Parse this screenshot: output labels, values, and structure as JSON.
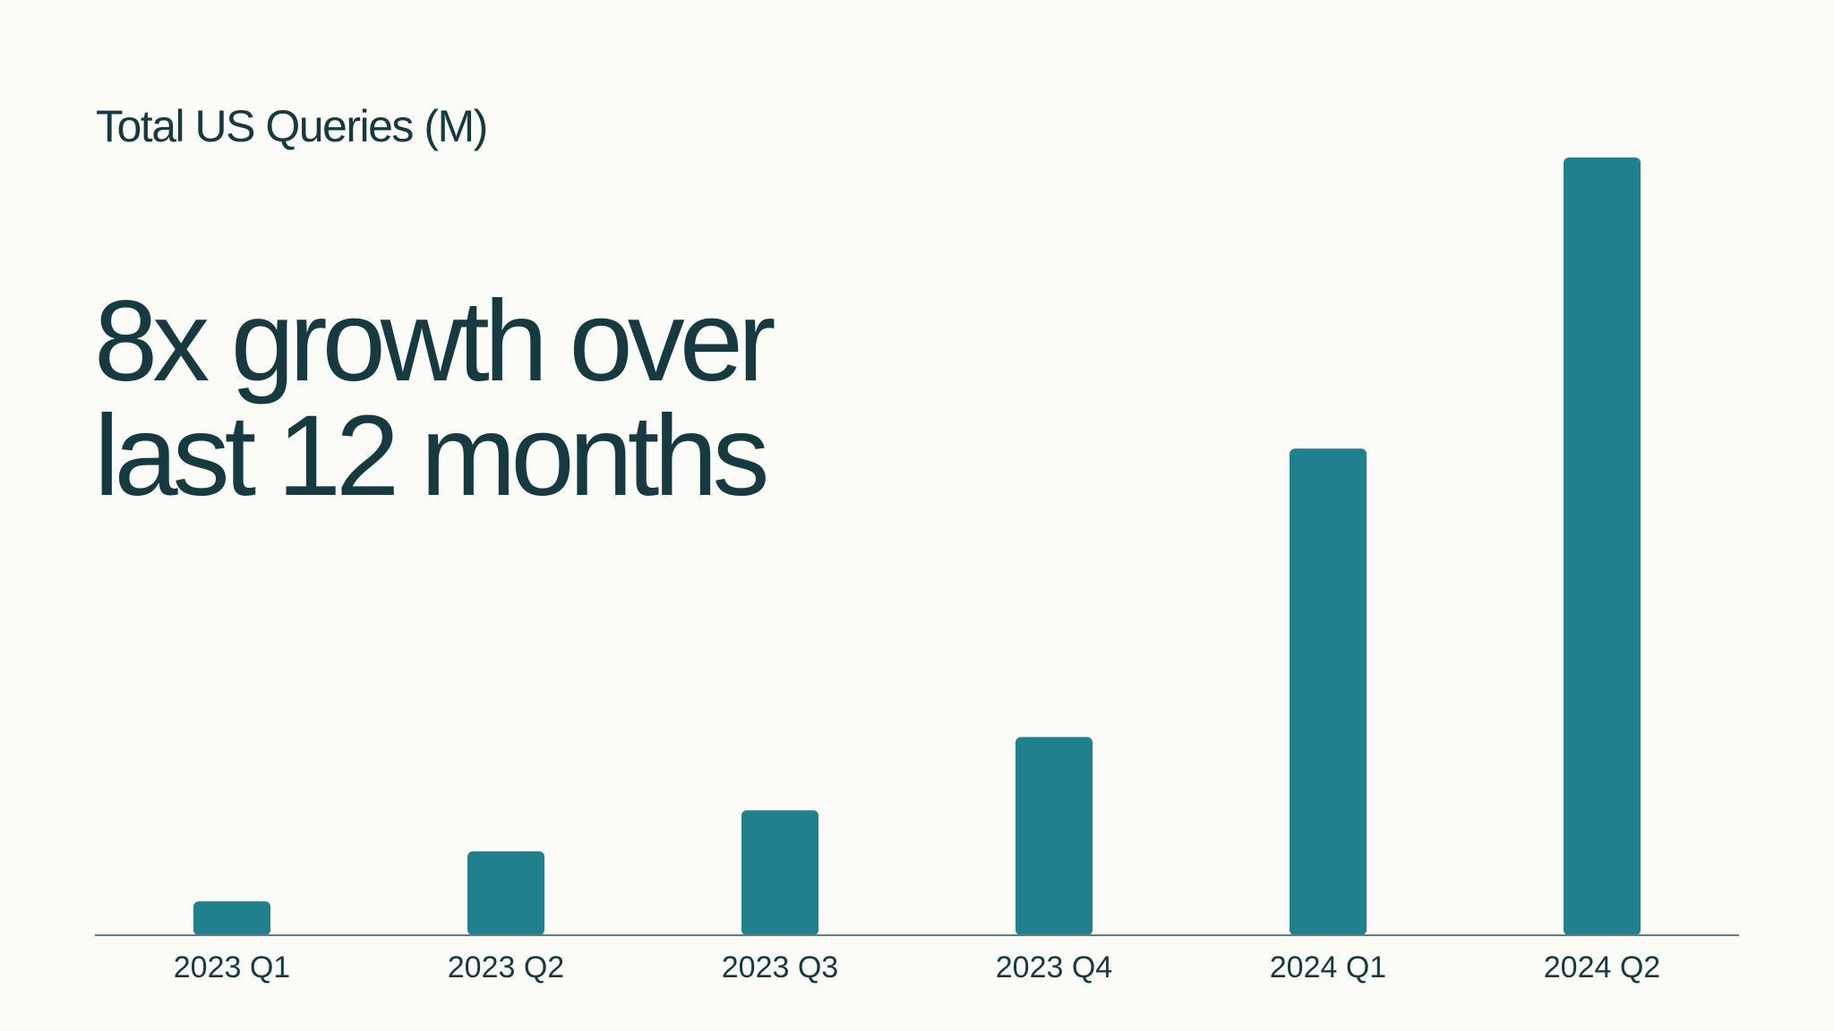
{
  "slide": {
    "headline": [
      "8x growth over",
      "last 12 months"
    ]
  },
  "colors": {
    "background": "#fbfbf7",
    "text": "#173a40",
    "bar": "#21808d",
    "axis": "#5f7f86"
  },
  "chart_data": {
    "type": "bar",
    "title": "Total US Queries (M)",
    "categories": [
      "2023 Q1",
      "2023 Q2",
      "2023 Q3",
      "2023 Q4",
      "2024 Q1",
      "2024 Q2"
    ],
    "values": [
      38,
      94,
      140,
      222,
      545,
      871
    ],
    "ylim": [
      0,
      871
    ],
    "xlabel": "",
    "ylabel": "",
    "grid": false,
    "legend": "none"
  }
}
